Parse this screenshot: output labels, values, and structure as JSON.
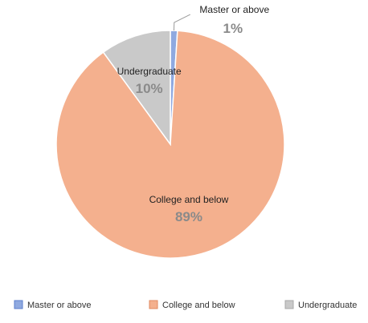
{
  "chart_data": {
    "type": "pie",
    "slices": [
      {
        "label": "Master or above",
        "value": 1,
        "display": "1%",
        "color": "#8fa9e0",
        "stroke": "#5b7fcc"
      },
      {
        "label": "College and below",
        "value": 89,
        "display": "89%",
        "color": "#f4b08e",
        "stroke": "#e08a60"
      },
      {
        "label": "Undergraduate",
        "value": 10,
        "display": "10%",
        "color": "#c9c9c9",
        "stroke": "#a8a8a8"
      }
    ],
    "legend": {
      "placement": "bottom",
      "items": [
        "Master or above",
        "College and below",
        "Undergraduate"
      ]
    },
    "title": ""
  }
}
